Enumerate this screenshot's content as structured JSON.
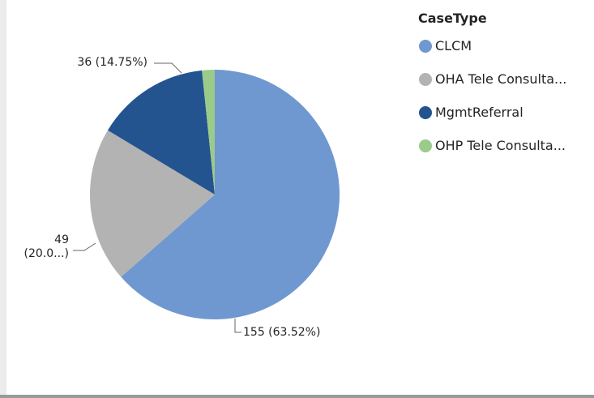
{
  "chart_data": {
    "type": "pie",
    "legend_title": "CaseType",
    "categories": [
      "CLCM",
      "OHA Tele Consulta...",
      "MgmtReferral",
      "OHP Tele Consulta..."
    ],
    "values": [
      155,
      49,
      36,
      4
    ],
    "value_labels": [
      "155 (63.52%)",
      "49\n(20.0...)",
      "36 (14.75%)",
      null
    ],
    "colors": [
      "#6f98d0",
      "#b3b3b3",
      "#23548f",
      "#9acb8a"
    ],
    "legend": "top-right"
  }
}
